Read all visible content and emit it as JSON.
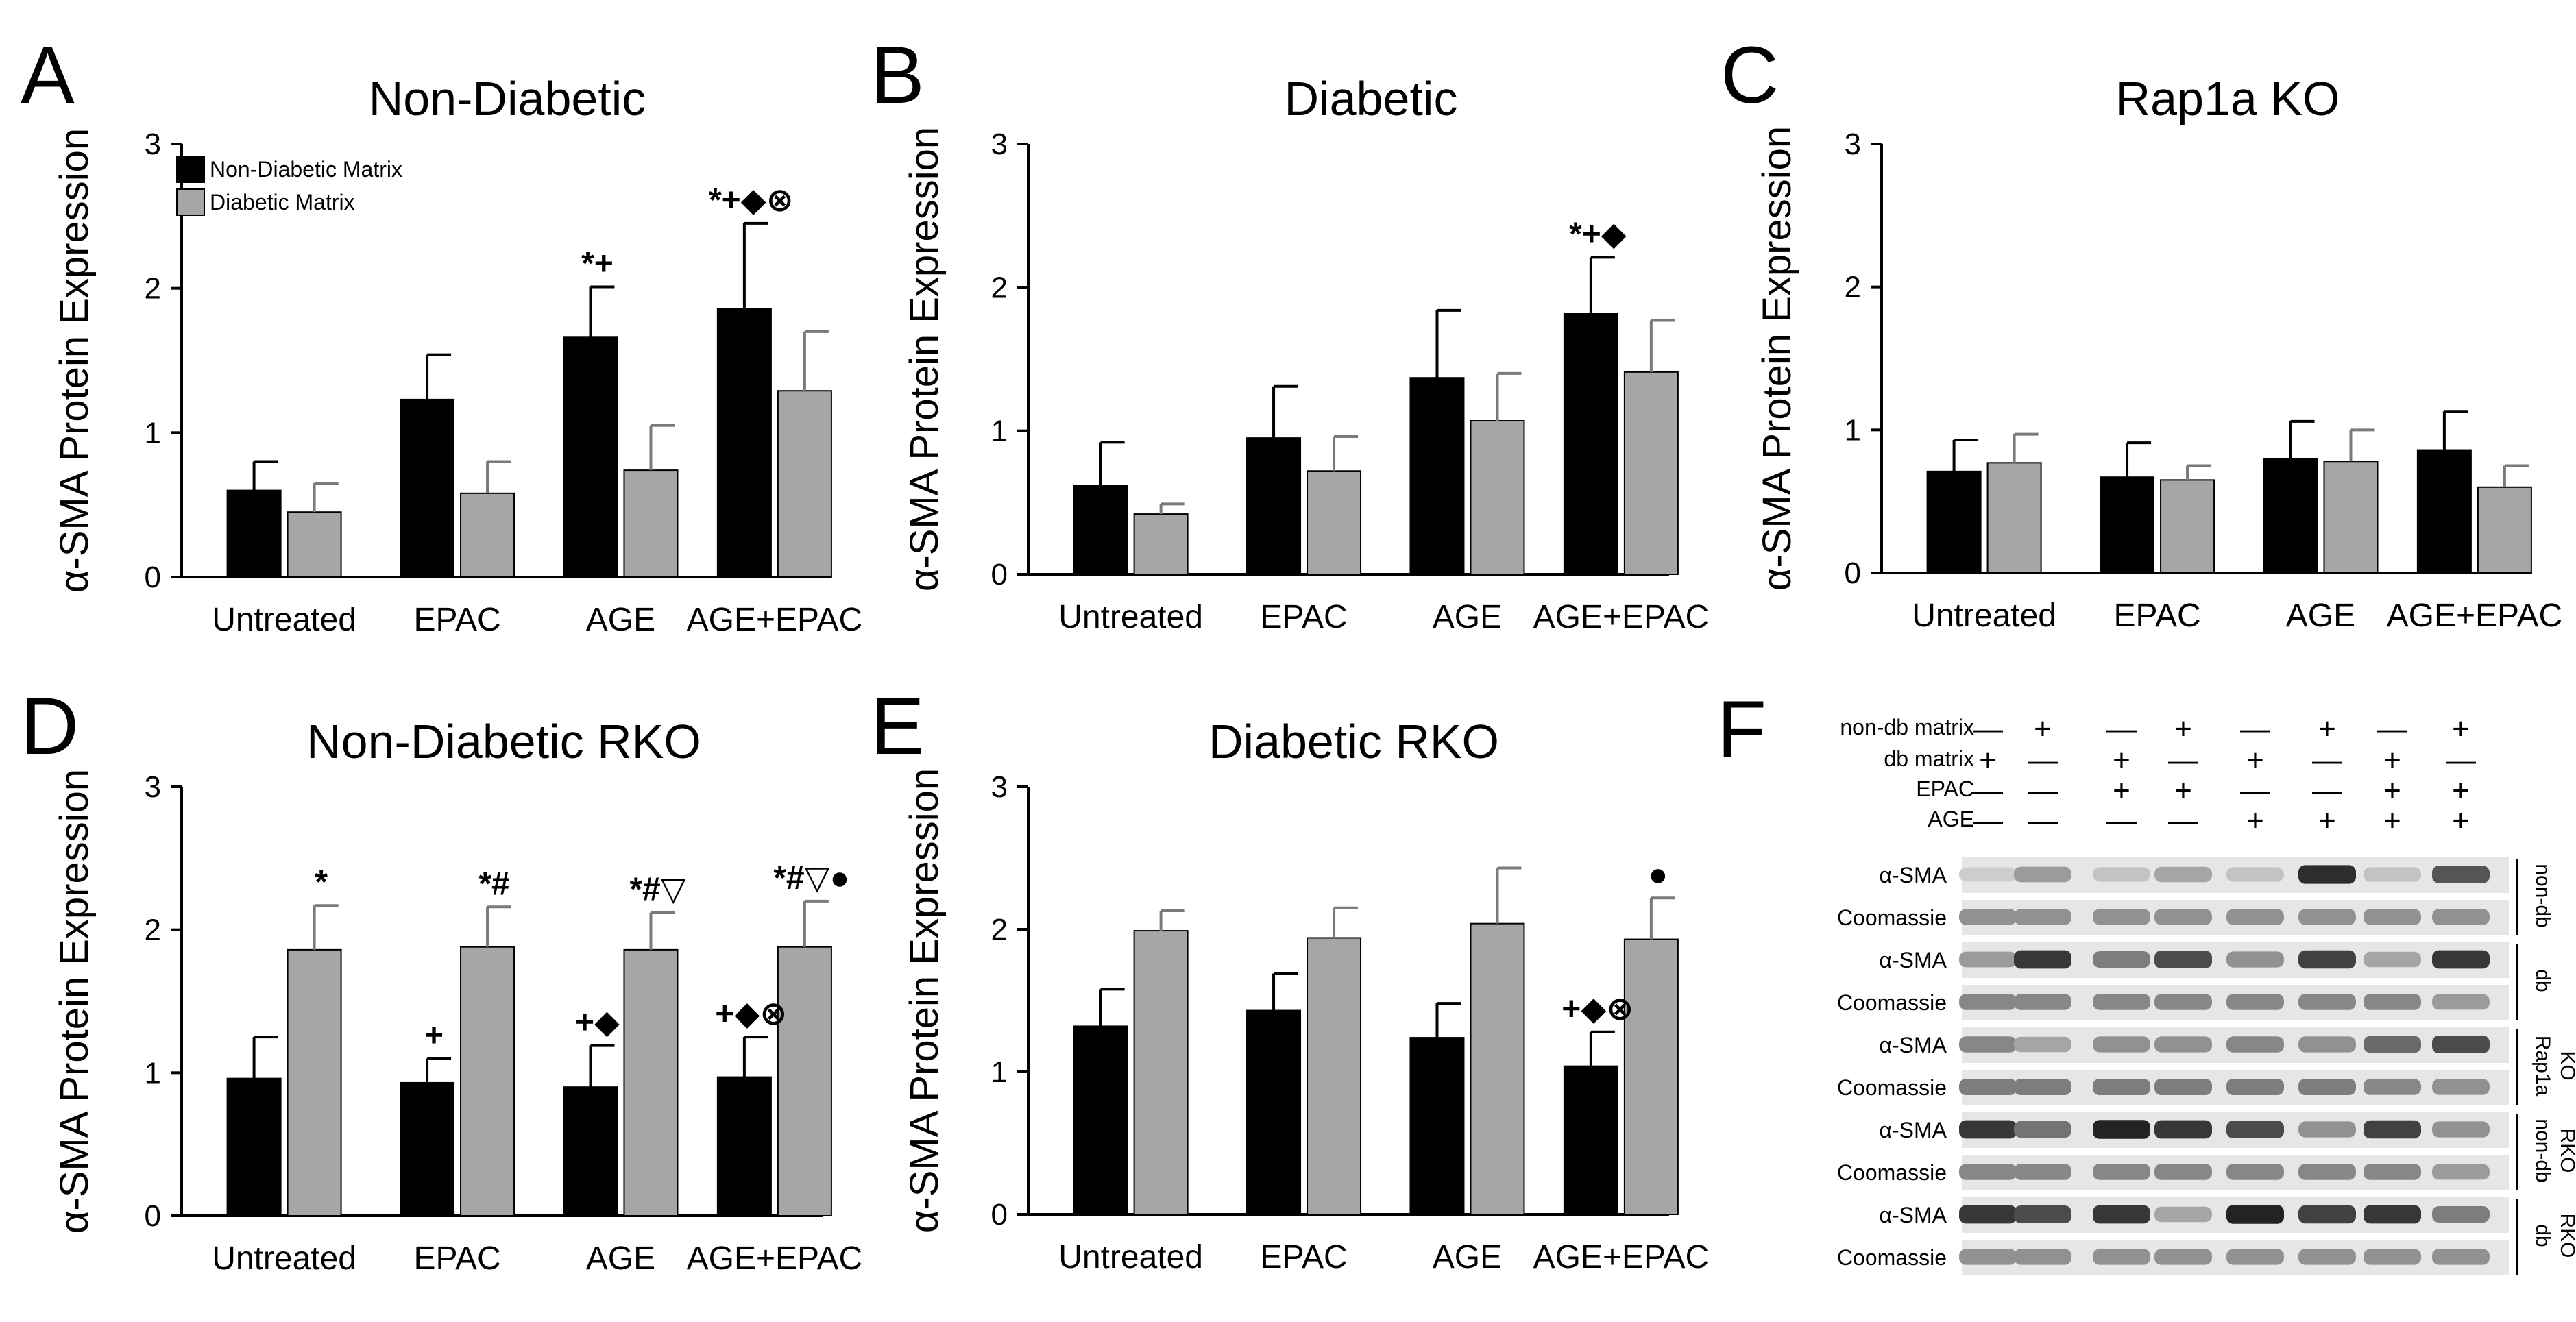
{
  "legend": [
    "Non-Diabetic Matrix",
    "Diabetic Matrix"
  ],
  "colors": {
    "non_diabetic": "#000000",
    "diabetic": "#a6a6a6"
  },
  "ylabel": "α-SMA Protein Expression",
  "chart_data": [
    {
      "panel": "A",
      "type": "bar",
      "title": "Non-Diabetic",
      "categories": [
        "Untreated",
        "EPAC",
        "AGE",
        "AGE+EPAC"
      ],
      "ylabel": "α-SMA Protein Expression",
      "ylim": [
        0,
        3
      ],
      "yticks": [
        0,
        1,
        2,
        3
      ],
      "legend": true,
      "series": [
        {
          "name": "Non-Diabetic Matrix",
          "values": [
            0.6,
            1.23,
            1.66,
            1.86
          ],
          "errors": [
            0.2,
            0.31,
            0.35,
            0.59
          ]
        },
        {
          "name": "Diabetic Matrix",
          "values": [
            0.45,
            0.58,
            0.74,
            1.29
          ],
          "errors": [
            0.2,
            0.22,
            0.31,
            0.41
          ]
        }
      ],
      "annotations": [
        {
          "category": 2,
          "series": 0,
          "text": "*+"
        },
        {
          "category": 3,
          "series": 0,
          "text": "*+◆⊗"
        }
      ]
    },
    {
      "panel": "B",
      "type": "bar",
      "title": "Diabetic",
      "categories": [
        "Untreated",
        "EPAC",
        "AGE",
        "AGE+EPAC"
      ],
      "ylabel": "α-SMA Protein Expression",
      "ylim": [
        0,
        3
      ],
      "yticks": [
        0,
        1,
        2,
        3
      ],
      "series": [
        {
          "name": "Non-Diabetic Matrix",
          "values": [
            0.62,
            0.95,
            1.37,
            1.82
          ],
          "errors": [
            0.3,
            0.36,
            0.47,
            0.39
          ]
        },
        {
          "name": "Diabetic Matrix",
          "values": [
            0.42,
            0.72,
            1.07,
            1.41
          ],
          "errors": [
            0.07,
            0.24,
            0.33,
            0.36
          ]
        }
      ],
      "annotations": [
        {
          "category": 3,
          "series": 0,
          "text": "*+◆"
        }
      ]
    },
    {
      "panel": "C",
      "type": "bar",
      "title": "Rap1a KO",
      "categories": [
        "Untreated",
        "EPAC",
        "AGE",
        "AGE+EPAC"
      ],
      "ylabel": "α-SMA Protein Expression",
      "ylim": [
        0,
        3
      ],
      "yticks": [
        0,
        1,
        2,
        3
      ],
      "series": [
        {
          "name": "Non-Diabetic Matrix",
          "values": [
            0.71,
            0.67,
            0.8,
            0.86
          ],
          "errors": [
            0.22,
            0.24,
            0.26,
            0.27
          ]
        },
        {
          "name": "Diabetic Matrix",
          "values": [
            0.77,
            0.65,
            0.78,
            0.6
          ],
          "errors": [
            0.2,
            0.1,
            0.22,
            0.15
          ]
        }
      ],
      "annotations": []
    },
    {
      "panel": "D",
      "type": "bar",
      "title": "Non-Diabetic RKO",
      "categories": [
        "Untreated",
        "EPAC",
        "AGE",
        "AGE+EPAC"
      ],
      "ylabel": "α-SMA Protein Expression",
      "ylim": [
        0,
        3
      ],
      "yticks": [
        0,
        1,
        2,
        3
      ],
      "series": [
        {
          "name": "Non-Diabetic Matrix",
          "values": [
            0.96,
            0.93,
            0.9,
            0.97
          ],
          "errors": [
            0.29,
            0.17,
            0.29,
            0.28
          ]
        },
        {
          "name": "Diabetic Matrix",
          "values": [
            1.86,
            1.88,
            1.86,
            1.88
          ],
          "errors": [
            0.31,
            0.28,
            0.26,
            0.32
          ]
        }
      ],
      "annotations": [
        {
          "category": 0,
          "series": 1,
          "text": "*"
        },
        {
          "category": 1,
          "series": 0,
          "text": "+"
        },
        {
          "category": 1,
          "series": 1,
          "text": "*#"
        },
        {
          "category": 2,
          "series": 0,
          "text": "+◆"
        },
        {
          "category": 2,
          "series": 1,
          "text": "*#▽"
        },
        {
          "category": 3,
          "series": 0,
          "text": "+◆⊗"
        },
        {
          "category": 3,
          "series": 1,
          "text": "*#▽●"
        }
      ]
    },
    {
      "panel": "E",
      "type": "bar",
      "title": "Diabetic RKO",
      "categories": [
        "Untreated",
        "EPAC",
        "AGE",
        "AGE+EPAC"
      ],
      "ylabel": "α-SMA Protein Expression",
      "ylim": [
        0,
        3
      ],
      "yticks": [
        0,
        1,
        2,
        3
      ],
      "series": [
        {
          "name": "Non-Diabetic Matrix",
          "values": [
            1.32,
            1.43,
            1.24,
            1.04
          ],
          "errors": [
            0.26,
            0.26,
            0.24,
            0.24
          ]
        },
        {
          "name": "Diabetic Matrix",
          "values": [
            1.99,
            1.94,
            2.04,
            1.93
          ],
          "errors": [
            0.14,
            0.21,
            0.39,
            0.29
          ]
        }
      ],
      "annotations": [
        {
          "category": 3,
          "series": 0,
          "text": "+◆⊗"
        },
        {
          "category": 3,
          "series": 1,
          "text": "●"
        }
      ]
    }
  ],
  "blot": {
    "panel": "F",
    "conditions": [
      {
        "label": "non-db matrix",
        "values": [
          "—",
          "+",
          "—",
          "+",
          "—",
          "+",
          "—",
          "+"
        ]
      },
      {
        "label": "db matrix",
        "values": [
          "+",
          "—",
          "+",
          "—",
          "+",
          "—",
          "+",
          "—"
        ]
      },
      {
        "label": "EPAC",
        "values": [
          "—",
          "—",
          "+",
          "+",
          "—",
          "—",
          "+",
          "+"
        ]
      },
      {
        "label": "AGE",
        "values": [
          "—",
          "—",
          "—",
          "—",
          "+",
          "+",
          "+",
          "+"
        ]
      }
    ],
    "groups": [
      {
        "side": [
          "non-db"
        ],
        "rows": [
          {
            "label": "α-SMA",
            "intensities": [
              0.1,
              0.35,
              0.15,
              0.3,
              0.15,
              0.9,
              0.15,
              0.7
            ]
          },
          {
            "label": "Coomassie",
            "intensities": [
              0.4,
              0.4,
              0.4,
              0.4,
              0.4,
              0.4,
              0.4,
              0.4
            ]
          }
        ]
      },
      {
        "side": [
          "db"
        ],
        "rows": [
          {
            "label": "α-SMA",
            "intensities": [
              0.35,
              0.85,
              0.5,
              0.75,
              0.4,
              0.8,
              0.3,
              0.85
            ]
          },
          {
            "label": "Coomassie",
            "intensities": [
              0.45,
              0.45,
              0.45,
              0.45,
              0.45,
              0.45,
              0.45,
              0.35
            ]
          }
        ]
      },
      {
        "side": [
          "Rap1a",
          "KO"
        ],
        "rows": [
          {
            "label": "α-SMA",
            "intensities": [
              0.45,
              0.3,
              0.4,
              0.4,
              0.45,
              0.4,
              0.6,
              0.75
            ]
          },
          {
            "label": "Coomassie",
            "intensities": [
              0.5,
              0.5,
              0.5,
              0.5,
              0.5,
              0.5,
              0.45,
              0.4
            ]
          }
        ]
      },
      {
        "side": [
          "non-db",
          "RKO"
        ],
        "rows": [
          {
            "label": "α-SMA",
            "intensities": [
              0.85,
              0.55,
              0.95,
              0.85,
              0.75,
              0.4,
              0.8,
              0.4
            ]
          },
          {
            "label": "Coomassie",
            "intensities": [
              0.45,
              0.45,
              0.45,
              0.45,
              0.45,
              0.45,
              0.45,
              0.35
            ]
          }
        ]
      },
      {
        "side": [
          "db",
          "RKO"
        ],
        "rows": [
          {
            "label": "α-SMA",
            "intensities": [
              0.85,
              0.75,
              0.85,
              0.3,
              0.95,
              0.8,
              0.85,
              0.5
            ]
          },
          {
            "label": "Coomassie",
            "intensities": [
              0.4,
              0.4,
              0.4,
              0.4,
              0.4,
              0.4,
              0.4,
              0.4
            ]
          }
        ]
      }
    ]
  }
}
